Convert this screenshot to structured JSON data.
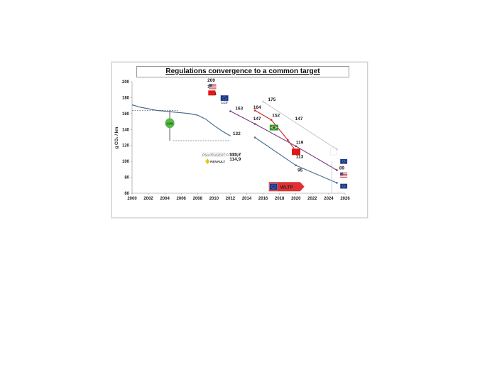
{
  "chart_data": {
    "type": "line",
    "title": "Regulations convergence  to a common target",
    "ylabel": "g CO₂ / km",
    "xlim": [
      2000,
      2026
    ],
    "ylim": [
      60,
      200
    ],
    "x_ticks": [
      "2000",
      "2002",
      "2004",
      "2006",
      "2008",
      "2010",
      "2012",
      "2014",
      "2016",
      "2018",
      "2020",
      "2022",
      "2024",
      "2026"
    ],
    "y_ticks": [
      "60",
      "80",
      "100",
      "120",
      "140",
      "160",
      "180",
      "200"
    ],
    "series": [
      {
        "color": "#4a6b8c",
        "points": [
          [
            2000,
            171
          ],
          [
            2001,
            168
          ],
          [
            2002,
            166
          ],
          [
            2003,
            164
          ],
          [
            2004,
            163
          ],
          [
            2005,
            162
          ],
          [
            2006,
            161
          ],
          [
            2007,
            160
          ],
          [
            2008,
            158
          ],
          [
            2009,
            153
          ],
          [
            2010,
            145
          ],
          [
            2011,
            138
          ],
          [
            2012,
            132
          ]
        ]
      },
      {
        "color": "#4a6b8c",
        "points": [
          [
            2015,
            130
          ],
          [
            2020,
            95
          ],
          [
            2025,
            73
          ]
        ]
      },
      {
        "color": "#7a3a7a",
        "points": [
          [
            2012,
            163
          ],
          [
            2015,
            147
          ],
          [
            2020,
            119
          ],
          [
            2025,
            89
          ]
        ]
      },
      {
        "color": "#cc2222",
        "points": [
          [
            2015,
            164
          ],
          [
            2017,
            152
          ],
          [
            2019,
            127
          ],
          [
            2020,
            113
          ]
        ]
      },
      {
        "color": "#c8c8c8",
        "points": [
          [
            2016,
            175
          ],
          [
            2025,
            115
          ]
        ]
      }
    ],
    "annotations": [
      {
        "text": "200",
        "x": 2009.2,
        "y": 200
      },
      {
        "text": "184",
        "x": 2009.2,
        "y": 192
      },
      {
        "text": "181",
        "x": 2009.4,
        "y": 183
      },
      {
        "text": "163",
        "x": 2012.6,
        "y": 165
      },
      {
        "text": "132",
        "x": 2012.3,
        "y": 133
      },
      {
        "text": "164",
        "x": 2014.8,
        "y": 166
      },
      {
        "text": "147",
        "x": 2014.8,
        "y": 152
      },
      {
        "text": "175",
        "x": 2016.6,
        "y": 176
      },
      {
        "text": "152",
        "x": 2017.1,
        "y": 156
      },
      {
        "text": "147",
        "x": 2019.9,
        "y": 152
      },
      {
        "text": "119",
        "x": 2020.0,
        "y": 122
      },
      {
        "text": "113",
        "x": 2020.0,
        "y": 104
      },
      {
        "text": "95",
        "x": 2020.2,
        "y": 87
      },
      {
        "text": "89",
        "x": 2025.3,
        "y": 90
      },
      {
        "text": "115,7",
        "x": 2011.9,
        "y": 107
      },
      {
        "text": "114,9",
        "x": 2011.9,
        "y": 101
      }
    ],
    "reduction_label": "-23%",
    "wltp_label": "WLTP",
    "brand_labels": {
      "psa": "PSA PEUGEOT CITROËN",
      "renault": "RENAULT"
    },
    "eu_label": "LCV",
    "colors": {
      "eu_blue": "#12369a",
      "flag_star": "#ffcc00",
      "green_circle": "#55bb44",
      "wltp_red": "#e03030",
      "china_red": "#e01818",
      "brazil_green": "#1b9a3a",
      "brazil_yellow": "#f3d11a"
    }
  }
}
